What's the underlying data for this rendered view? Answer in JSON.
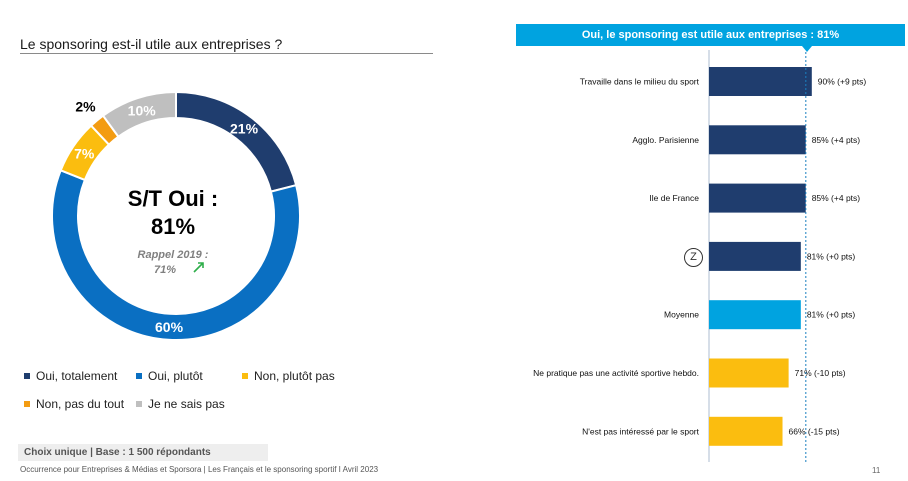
{
  "left": {
    "title": "Le sponsoring est-il utile aux entreprises ?",
    "center_title_line1": "S/T Oui :",
    "center_title_line2": "81%",
    "rappel_line1": "Rappel 2019 :",
    "rappel_line2": "71%",
    "base": "Choix unique | Base : 1 500 répondants"
  },
  "right": {
    "header": "Oui, le sponsoring est utile aux entreprises : 81%",
    "badge": "Z"
  },
  "footer": "Occurrence pour Entreprises & Médias et Sporsora | Les Français et le sponsoring sportif I Avril 2023",
  "page_number": "11",
  "chart_data": [
    {
      "type": "pie",
      "variant": "donut",
      "categories": [
        "Oui, totalement",
        "Oui, plutôt",
        "Non, plutôt pas",
        "Non, pas du tout",
        "Je ne sais pas"
      ],
      "values": [
        21,
        60,
        7,
        2,
        10
      ],
      "labels": [
        "21%",
        "60%",
        "7%",
        "2%",
        "10%"
      ],
      "colors": [
        "#1f3d6e",
        "#0a6fc2",
        "#fbbd0f",
        "#f39c12",
        "#bfbfbf"
      ],
      "legend": "bottom"
    },
    {
      "type": "bar",
      "orientation": "horizontal",
      "categories": [
        "Travaille dans le milieu du sport",
        "Agglo. Parisienne",
        "Ile de France",
        "",
        "Moyenne",
        "Ne pratique pas une activité sportive hebdo.",
        "N'est pas intéressé par le sport"
      ],
      "values": [
        90,
        85,
        85,
        81,
        81,
        71,
        66
      ],
      "labels": [
        "90% (+9 pts)",
        "85% (+4 pts)",
        "85% (+4 pts)",
        "81% (+0 pts)",
        "81% (+0 pts)",
        "71% (-10 pts)",
        "66% (-15 pts)"
      ],
      "colors": [
        "#1f3d6e",
        "#1f3d6e",
        "#1f3d6e",
        "#1f3d6e",
        "#00a3e0",
        "#fbbd0f",
        "#fbbd0f"
      ],
      "reference_value": 81
    }
  ]
}
